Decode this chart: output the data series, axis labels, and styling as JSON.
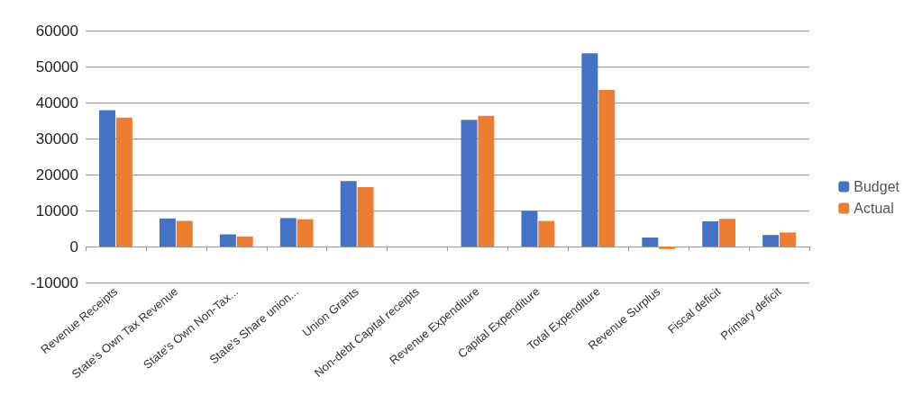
{
  "chart_data": {
    "type": "bar",
    "categories": [
      "Revenue Receipts",
      "State's Own Tax Revenue",
      "State's Own Non-Tax...",
      "State's Share union...",
      "Union Grants",
      "Non-debt Capital receipts",
      "Revenue Expenditure",
      "Capital Expenditure",
      "Total Expenditure",
      "Revenue Surplus",
      "Fiscal deficit",
      "Primary deficit"
    ],
    "series": [
      {
        "name": "Budget",
        "color": "#4472c4",
        "values": [
          37900,
          7800,
          3400,
          7900,
          18200,
          0,
          35200,
          9900,
          53700,
          2500,
          7000,
          3200
        ]
      },
      {
        "name": "Actual",
        "color": "#ed7d31",
        "values": [
          35800,
          7100,
          2800,
          7600,
          16500,
          0,
          36300,
          7100,
          43500,
          -700,
          7700,
          3900
        ]
      }
    ],
    "ylim": [
      -10000,
      60000
    ],
    "yticks": [
      -10000,
      0,
      10000,
      20000,
      30000,
      40000,
      50000,
      60000
    ],
    "grid": "y",
    "legend": "right"
  }
}
